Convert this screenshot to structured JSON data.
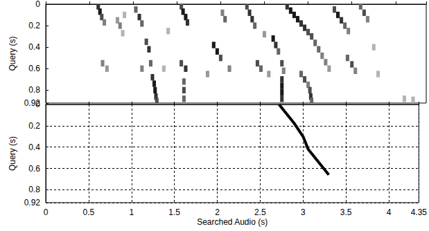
{
  "chart_data": [
    {
      "type": "heatmap",
      "ylabel": "Query (s)",
      "xlim": [
        0,
        4.35
      ],
      "xticks": [
        0,
        0.5,
        1,
        1.5,
        2,
        2.5,
        3,
        3.5,
        4
      ],
      "ylim": [
        0,
        0.92
      ],
      "yticks": [
        0,
        0.2,
        0.4,
        0.6,
        0.8
      ],
      "grid": false,
      "tick_labels": "y",
      "cell_size": [
        0.04,
        0.06
      ],
      "color_range": [
        0,
        1
      ],
      "cells": [
        [
          0.6,
          0.02,
          0.8
        ],
        [
          0.62,
          0.07,
          0.9
        ],
        [
          0.64,
          0.12,
          0.7
        ],
        [
          0.67,
          0.17,
          0.5
        ],
        [
          0.82,
          0.15,
          0.4
        ],
        [
          0.85,
          0.2,
          0.5
        ],
        [
          0.88,
          0.27,
          0.3
        ],
        [
          0.9,
          0.1,
          0.3
        ],
        [
          0.65,
          0.55,
          0.5
        ],
        [
          0.7,
          0.6,
          0.4
        ],
        [
          1.03,
          0.05,
          0.6
        ],
        [
          1.07,
          0.12,
          0.8
        ],
        [
          1.1,
          0.18,
          0.6
        ],
        [
          1.15,
          0.35,
          0.7
        ],
        [
          1.18,
          0.42,
          0.8
        ],
        [
          1.1,
          0.6,
          0.5
        ],
        [
          1.2,
          0.55,
          0.6
        ],
        [
          1.22,
          0.68,
          0.8
        ],
        [
          1.24,
          0.74,
          0.9
        ],
        [
          1.25,
          0.8,
          0.9
        ],
        [
          1.26,
          0.86,
          0.8
        ],
        [
          1.27,
          0.9,
          0.7
        ],
        [
          1.55,
          0.02,
          0.7
        ],
        [
          1.57,
          0.07,
          0.9
        ],
        [
          1.6,
          0.12,
          0.9
        ],
        [
          1.62,
          0.17,
          0.8
        ],
        [
          1.55,
          0.55,
          0.7
        ],
        [
          1.6,
          0.6,
          0.8
        ],
        [
          1.58,
          0.72,
          0.6
        ],
        [
          1.58,
          0.8,
          0.7
        ],
        [
          1.58,
          0.88,
          0.6
        ],
        [
          1.4,
          0.25,
          0.3
        ],
        [
          1.35,
          0.6,
          0.3
        ],
        [
          1.92,
          0.38,
          0.9
        ],
        [
          1.96,
          0.44,
          0.9
        ],
        [
          2.0,
          0.5,
          0.7
        ],
        [
          2.02,
          0.08,
          0.5
        ],
        [
          2.05,
          0.14,
          0.6
        ],
        [
          1.85,
          0.65,
          0.4
        ],
        [
          2.1,
          0.6,
          0.5
        ],
        [
          2.3,
          0.02,
          0.7
        ],
        [
          2.33,
          0.08,
          0.8
        ],
        [
          2.36,
          0.14,
          0.8
        ],
        [
          2.39,
          0.2,
          0.6
        ],
        [
          2.5,
          0.28,
          0.4
        ],
        [
          2.42,
          0.55,
          0.7
        ],
        [
          2.46,
          0.6,
          0.6
        ],
        [
          2.55,
          0.65,
          0.4
        ],
        [
          2.6,
          0.32,
          0.9
        ],
        [
          2.63,
          0.38,
          0.8
        ],
        [
          2.66,
          0.44,
          0.6
        ],
        [
          2.7,
          0.55,
          0.7
        ],
        [
          2.72,
          0.62,
          0.5
        ],
        [
          2.7,
          0.7,
          0.8
        ],
        [
          2.7,
          0.76,
          0.9
        ],
        [
          2.7,
          0.82,
          0.9
        ],
        [
          2.7,
          0.88,
          0.8
        ],
        [
          2.76,
          0.02,
          0.8
        ],
        [
          2.8,
          0.06,
          0.9
        ],
        [
          2.84,
          0.1,
          0.9
        ],
        [
          2.88,
          0.14,
          0.9
        ],
        [
          2.92,
          0.18,
          0.8
        ],
        [
          2.96,
          0.22,
          0.8
        ],
        [
          3.0,
          0.26,
          0.7
        ],
        [
          3.04,
          0.3,
          0.7
        ],
        [
          3.08,
          0.36,
          0.6
        ],
        [
          3.12,
          0.42,
          0.6
        ],
        [
          3.16,
          0.48,
          0.5
        ],
        [
          3.2,
          0.54,
          0.5
        ],
        [
          3.24,
          0.6,
          0.4
        ],
        [
          2.92,
          0.65,
          0.6
        ],
        [
          2.96,
          0.7,
          0.7
        ],
        [
          3.0,
          0.75,
          0.5
        ],
        [
          3.02,
          0.8,
          0.7
        ],
        [
          3.03,
          0.86,
          0.8
        ],
        [
          3.04,
          0.9,
          0.6
        ],
        [
          3.3,
          0.05,
          0.7
        ],
        [
          3.34,
          0.1,
          0.9
        ],
        [
          3.38,
          0.15,
          0.8
        ],
        [
          3.42,
          0.2,
          0.6
        ],
        [
          3.46,
          0.25,
          0.5
        ],
        [
          3.45,
          0.5,
          0.6
        ],
        [
          3.5,
          0.56,
          0.7
        ],
        [
          3.54,
          0.62,
          0.5
        ],
        [
          3.6,
          0.02,
          0.6
        ],
        [
          3.64,
          0.08,
          0.7
        ],
        [
          3.68,
          0.14,
          0.5
        ],
        [
          3.75,
          0.4,
          0.3
        ],
        [
          3.8,
          0.65,
          0.3
        ],
        [
          4.1,
          0.88,
          0.3
        ],
        [
          4.2,
          0.89,
          0.3
        ]
      ]
    },
    {
      "type": "line",
      "xlabel": "Searched Audio (s)",
      "ylabel": "Query (s)",
      "xlim": [
        0,
        4.35
      ],
      "xticks": [
        0,
        0.5,
        1,
        1.5,
        2,
        2.5,
        3,
        3.5,
        4
      ],
      "ylim": [
        0,
        0.92
      ],
      "yticks": [
        0,
        0.2,
        0.4,
        0.6,
        0.8
      ],
      "grid": true,
      "color": "#000000",
      "line_style": "solid",
      "x": [
        2.72,
        2.78,
        2.84,
        2.9,
        2.95,
        3.0,
        3.03,
        3.06,
        3.12,
        3.18,
        3.24,
        3.3
      ],
      "values": [
        0,
        0.06,
        0.12,
        0.18,
        0.24,
        0.3,
        0.36,
        0.42,
        0.48,
        0.54,
        0.6,
        0.66
      ]
    }
  ]
}
